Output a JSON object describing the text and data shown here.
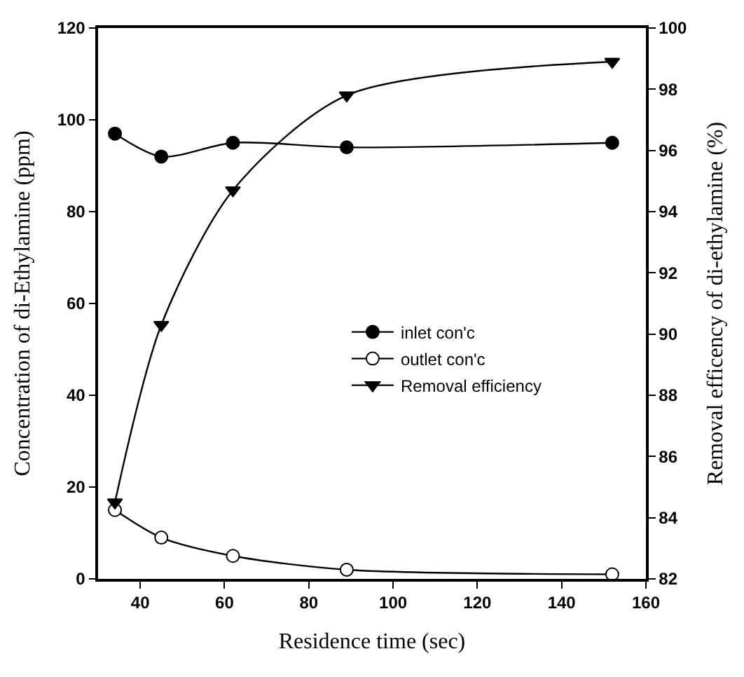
{
  "chart_data": {
    "type": "line",
    "xlabel": "Residence time (sec)",
    "ylabel": "Concentration of di-Ethylamine (ppm)",
    "y2label": "Removal efficency of di-ethylamine (%)",
    "x": [
      34,
      45,
      62,
      89,
      152
    ],
    "series": [
      {
        "name": "inlet con'c",
        "color": "#000000",
        "marker": "circle",
        "values": [
          97,
          92,
          95,
          94,
          95
        ]
      },
      {
        "name": "outlet con'c",
        "color": "#ffffff",
        "marker": "circle",
        "values": [
          15,
          9,
          5,
          2,
          1
        ]
      },
      {
        "name": "Removal efficiency",
        "color": "#000000",
        "marker": "triangle",
        "axis": "y2",
        "values": [
          84.5,
          90.3,
          94.7,
          97.8,
          98.9
        ]
      }
    ],
    "xlim": [
      30,
      160
    ],
    "xticks": [
      40,
      60,
      80,
      100,
      120,
      140,
      160
    ],
    "ylim": [
      0,
      120
    ],
    "yticks": [
      0,
      20,
      40,
      60,
      80,
      100,
      120
    ],
    "y2lim": [
      82,
      100
    ],
    "y2ticks": [
      82,
      84,
      86,
      88,
      90,
      92,
      94,
      96,
      98,
      100
    ],
    "legend": "right",
    "line_style": "solid"
  }
}
